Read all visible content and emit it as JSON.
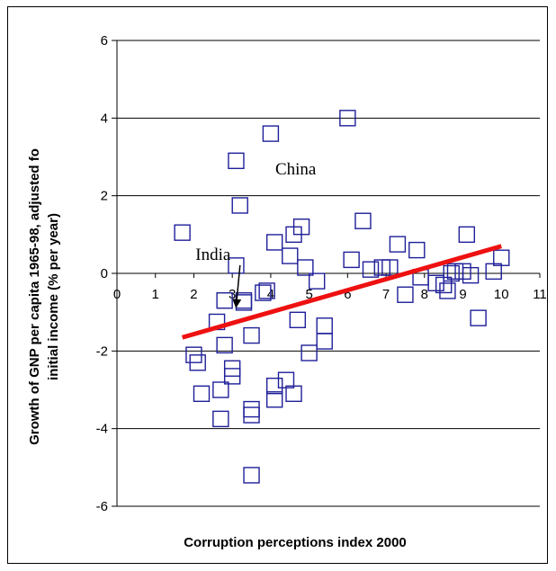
{
  "chart_data": {
    "type": "scatter",
    "xlabel": "Corruption perceptions index 2000",
    "ylabel_lines": [
      "Growth of GNP per capita 1965-98, adjusted fo",
      "initial income (% per year)"
    ],
    "xlim": [
      0,
      11
    ],
    "ylim": [
      -6,
      6
    ],
    "x_ticks": [
      0,
      1,
      2,
      3,
      4,
      5,
      6,
      7,
      8,
      9,
      10,
      11
    ],
    "y_ticks": [
      -6,
      -4,
      -2,
      0,
      2,
      4,
      6
    ],
    "grid": "horizontal",
    "marker": "hollow-square",
    "marker_color": "#1f1f99",
    "trend_color": "#ee1111",
    "points": [
      [
        1.7,
        1.05
      ],
      [
        2.0,
        -2.1
      ],
      [
        2.1,
        -2.3
      ],
      [
        2.2,
        -3.1
      ],
      [
        2.6,
        -1.25
      ],
      [
        2.7,
        -3.0
      ],
      [
        2.7,
        -3.75
      ],
      [
        2.8,
        -0.7
      ],
      [
        2.8,
        -1.85
      ],
      [
        3.0,
        -2.45
      ],
      [
        3.0,
        -2.65
      ],
      [
        3.1,
        2.9
      ],
      [
        3.1,
        0.2
      ],
      [
        3.2,
        1.75
      ],
      [
        3.3,
        -0.7
      ],
      [
        3.3,
        -0.75
      ],
      [
        3.5,
        -1.6
      ],
      [
        3.5,
        -3.5
      ],
      [
        3.5,
        -3.65
      ],
      [
        3.5,
        -5.2
      ],
      [
        3.8,
        -0.5
      ],
      [
        3.9,
        -0.45
      ],
      [
        4.0,
        3.6
      ],
      [
        4.1,
        0.8
      ],
      [
        4.1,
        -2.9
      ],
      [
        4.1,
        -3.25
      ],
      [
        4.4,
        -2.75
      ],
      [
        4.5,
        0.45
      ],
      [
        4.6,
        -3.1
      ],
      [
        4.6,
        1.0
      ],
      [
        4.7,
        -1.2
      ],
      [
        4.8,
        1.2
      ],
      [
        4.9,
        0.15
      ],
      [
        5.0,
        -2.05
      ],
      [
        5.2,
        -0.2
      ],
      [
        5.4,
        -1.35
      ],
      [
        5.4,
        -1.75
      ],
      [
        6.0,
        4.0
      ],
      [
        6.1,
        0.35
      ],
      [
        6.4,
        1.35
      ],
      [
        6.6,
        0.1
      ],
      [
        6.9,
        0.15
      ],
      [
        7.1,
        0.15
      ],
      [
        7.3,
        0.75
      ],
      [
        7.5,
        -0.55
      ],
      [
        7.8,
        0.6
      ],
      [
        7.9,
        -0.1
      ],
      [
        8.3,
        -0.25
      ],
      [
        8.5,
        -0.3
      ],
      [
        8.6,
        -0.45
      ],
      [
        8.7,
        0.0
      ],
      [
        8.8,
        0.05
      ],
      [
        9.0,
        0.05
      ],
      [
        9.1,
        1.0
      ],
      [
        9.2,
        -0.05
      ],
      [
        9.4,
        -1.15
      ],
      [
        9.8,
        0.05
      ],
      [
        10.0,
        0.4
      ]
    ],
    "trendline": {
      "x": [
        1.7,
        10.0
      ],
      "y": [
        -1.65,
        0.7
      ]
    },
    "annotations": [
      {
        "text": "China",
        "x": 4.65,
        "y": 2.55
      },
      {
        "text": "India",
        "x": 2.5,
        "y": 0.35,
        "arrow_to": [
          3.1,
          -0.85
        ]
      }
    ]
  }
}
